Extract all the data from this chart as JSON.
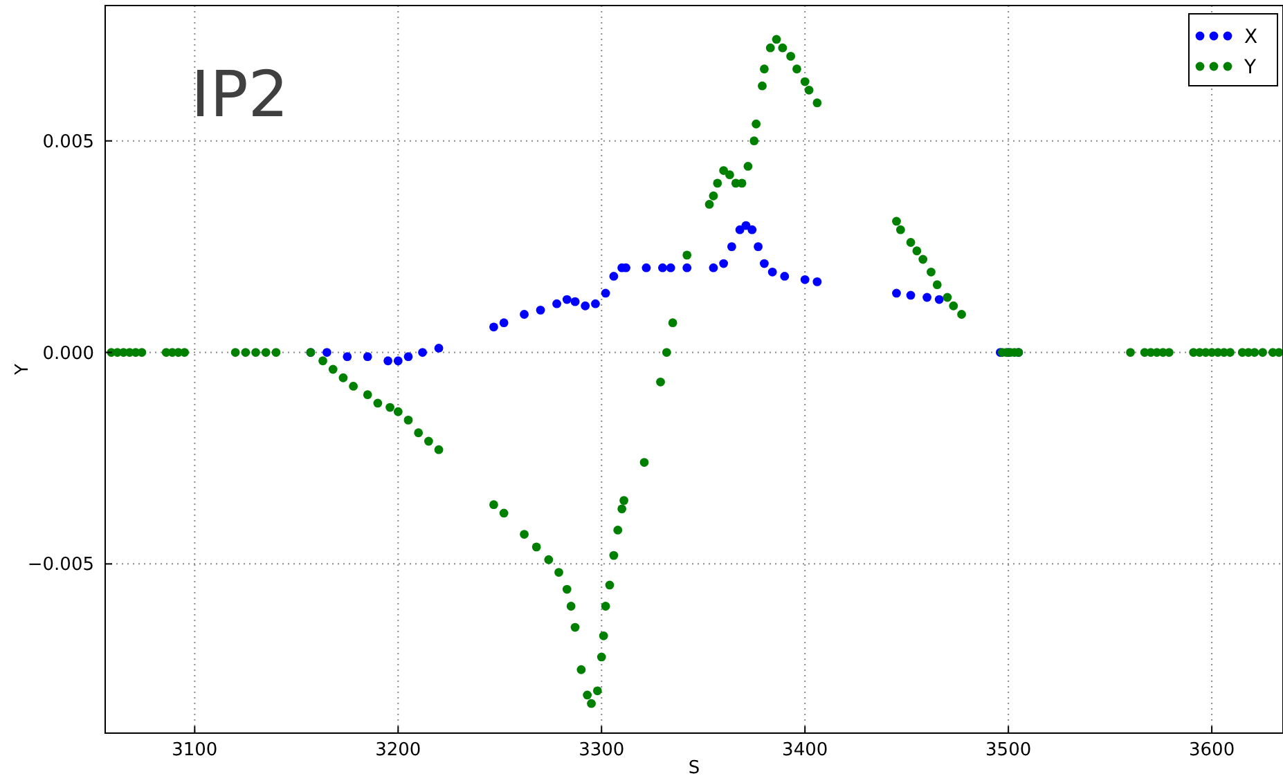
{
  "chart_data": {
    "type": "scatter",
    "xlabel": "S",
    "ylabel": "Y",
    "annotations": [
      "IP2"
    ],
    "xlim": [
      3056,
      3635
    ],
    "ylim": [
      -0.009,
      0.0082
    ],
    "xticks": [
      3100,
      3200,
      3300,
      3400,
      3500,
      3600
    ],
    "yticks": [
      {
        "value": -0.005,
        "label": "−0.005"
      },
      {
        "value": 0,
        "label": "0.000"
      },
      0.005
    ],
    "grid": true,
    "legend": "top right",
    "marker": "circle",
    "series": [
      {
        "name": "X",
        "color": "#0000ff",
        "x": [
          3157,
          3165,
          3175,
          3185,
          3195,
          3200,
          3205,
          3212,
          3220,
          3247,
          3252,
          3262,
          3270,
          3278,
          3283,
          3287,
          3292,
          3297,
          3302,
          3306,
          3310,
          3312,
          3322,
          3330,
          3334,
          3342,
          3355,
          3360,
          3364,
          3368,
          3371,
          3374,
          3377,
          3380,
          3384,
          3390,
          3400,
          3406,
          3445,
          3452,
          3460,
          3466,
          3496,
          3500,
          3505
        ],
        "values": [
          0,
          0,
          -0.0001,
          -0.0001,
          -0.0002,
          -0.0002,
          -0.0001,
          0,
          0.0001,
          0.0006,
          0.0007,
          0.0009,
          0.001,
          0.00115,
          0.00125,
          0.0012,
          0.0011,
          0.00115,
          0.0014,
          0.0018,
          0.002,
          0.002,
          0.002,
          0.002,
          0.002,
          0.002,
          0.002,
          0.0021,
          0.0025,
          0.0029,
          0.003,
          0.0029,
          0.0025,
          0.0021,
          0.0019,
          0.0018,
          0.00172,
          0.00167,
          0.0014,
          0.00135,
          0.0013,
          0.00125,
          0,
          0,
          0
        ]
      },
      {
        "name": "Y",
        "color": "#008000",
        "x": [
          3059,
          3062,
          3065,
          3068,
          3071,
          3074,
          3086,
          3089,
          3092,
          3095,
          3120,
          3125,
          3130,
          3135,
          3140,
          3157,
          3163,
          3168,
          3173,
          3178,
          3185,
          3190,
          3196,
          3200,
          3205,
          3210,
          3215,
          3220,
          3247,
          3252,
          3262,
          3268,
          3274,
          3279,
          3283,
          3285,
          3287,
          3290,
          3293,
          3295,
          3298,
          3300,
          3301,
          3302,
          3304,
          3306,
          3308,
          3310,
          3311,
          3321,
          3329,
          3332,
          3335,
          3342,
          3353,
          3355,
          3357,
          3360,
          3363,
          3366,
          3369,
          3372,
          3375,
          3376,
          3379,
          3380,
          3383,
          3386,
          3389,
          3393,
          3396,
          3400,
          3402,
          3406,
          3445,
          3447,
          3452,
          3455,
          3458,
          3462,
          3465,
          3470,
          3473,
          3477,
          3497,
          3499,
          3501,
          3503,
          3505,
          3560,
          3567,
          3570,
          3573,
          3576,
          3579,
          3591,
          3594,
          3597,
          3600,
          3603,
          3606,
          3609,
          3615,
          3618,
          3621,
          3625,
          3630,
          3633
        ],
        "values": [
          0,
          0,
          0,
          0,
          0,
          0,
          0,
          0,
          0,
          0,
          0,
          0,
          0,
          0,
          0,
          0,
          -0.0002,
          -0.0004,
          -0.0006,
          -0.0008,
          -0.001,
          -0.0012,
          -0.0013,
          -0.0014,
          -0.0016,
          -0.0019,
          -0.0021,
          -0.0023,
          -0.0036,
          -0.0038,
          -0.0043,
          -0.0046,
          -0.0049,
          -0.0052,
          -0.0056,
          -0.006,
          -0.0065,
          -0.0075,
          -0.0081,
          -0.0083,
          -0.008,
          -0.0072,
          -0.0067,
          -0.006,
          -0.0055,
          -0.0048,
          -0.0042,
          -0.0037,
          -0.0035,
          -0.0026,
          -0.0007,
          0,
          0.0007,
          0.0023,
          0.0035,
          0.0037,
          0.004,
          0.0043,
          0.0042,
          0.004,
          0.004,
          0.0044,
          0.005,
          0.0054,
          0.0063,
          0.0067,
          0.0072,
          0.0074,
          0.0072,
          0.007,
          0.0067,
          0.0064,
          0.0062,
          0.0059,
          0.0031,
          0.0029,
          0.0026,
          0.0024,
          0.0022,
          0.0019,
          0.0016,
          0.0013,
          0.0011,
          0.0009,
          0,
          0,
          0,
          0,
          0,
          0,
          0,
          0,
          0,
          0,
          0,
          0,
          0,
          0,
          0,
          0,
          0,
          0,
          0,
          0,
          0,
          0,
          0,
          0
        ]
      }
    ]
  }
}
